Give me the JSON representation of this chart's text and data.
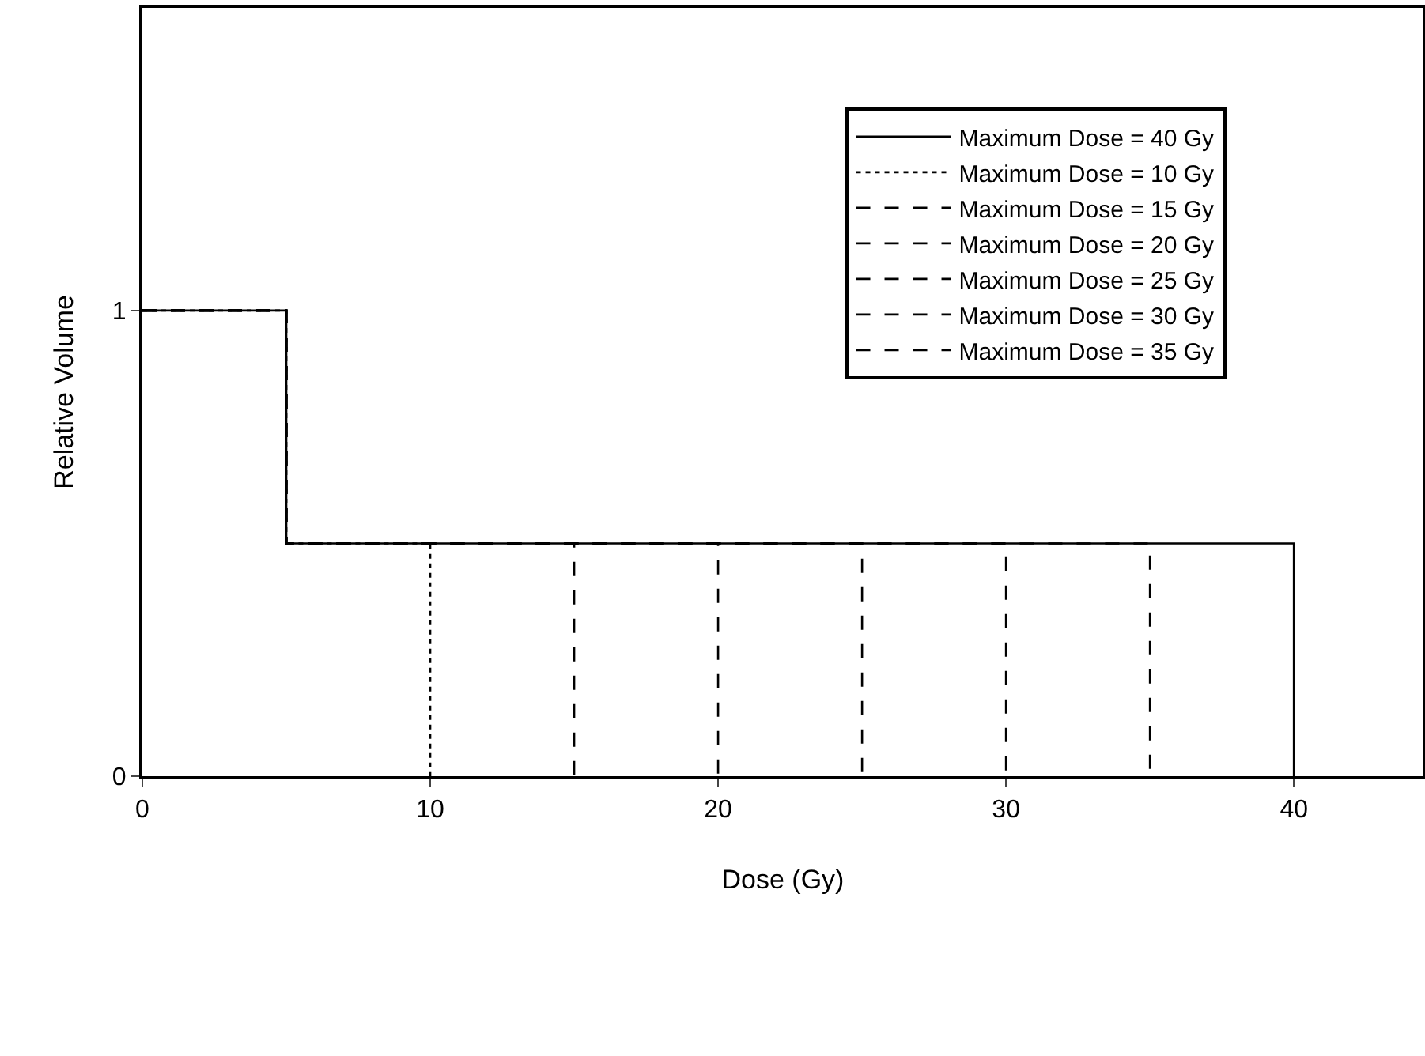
{
  "chart_data": {
    "type": "step",
    "xlabel": "Dose (Gy)",
    "ylabel": "Relative Volume",
    "xlim": [
      0,
      44.5
    ],
    "xticks": [
      0,
      10,
      20,
      30,
      40
    ],
    "ylim": [
      0,
      1.65
    ],
    "yticks": [
      0,
      1
    ],
    "grid": false,
    "legend": "top right",
    "marker": "none",
    "series": [
      {
        "name": "Maximum Dose = 10 Gy",
        "color": "#000000",
        "line_style": "dotted",
        "x": [
          0,
          5,
          10
        ],
        "values": [
          1,
          0.5,
          0
        ]
      },
      {
        "name": "Maximum Dose = 15 Gy",
        "color": "#000000",
        "line_style": "dashed",
        "x": [
          0,
          5,
          15
        ],
        "values": [
          1,
          0.5,
          0
        ]
      },
      {
        "name": "Maximum Dose = 20 Gy",
        "color": "#000000",
        "line_style": "dashed",
        "x": [
          0,
          5,
          20
        ],
        "values": [
          1,
          0.5,
          0
        ]
      },
      {
        "name": "Maximum Dose = 25 Gy",
        "color": "#000000",
        "line_style": "dashed",
        "x": [
          0,
          5,
          25
        ],
        "values": [
          1,
          0.5,
          0
        ]
      },
      {
        "name": "Maximum Dose = 30 Gy",
        "color": "#000000",
        "line_style": "dashed",
        "x": [
          0,
          5,
          30
        ],
        "values": [
          1,
          0.5,
          0
        ]
      },
      {
        "name": "Maximum Dose = 35 Gy",
        "color": "#000000",
        "line_style": "dashed",
        "x": [
          0,
          5,
          35
        ],
        "values": [
          1,
          0.5,
          0
        ]
      },
      {
        "name": "Maximum Dose = 40 Gy",
        "color": "#000000",
        "line_style": "solid",
        "x": [
          0,
          5,
          40
        ],
        "values": [
          1,
          0.5,
          0
        ]
      }
    ]
  }
}
